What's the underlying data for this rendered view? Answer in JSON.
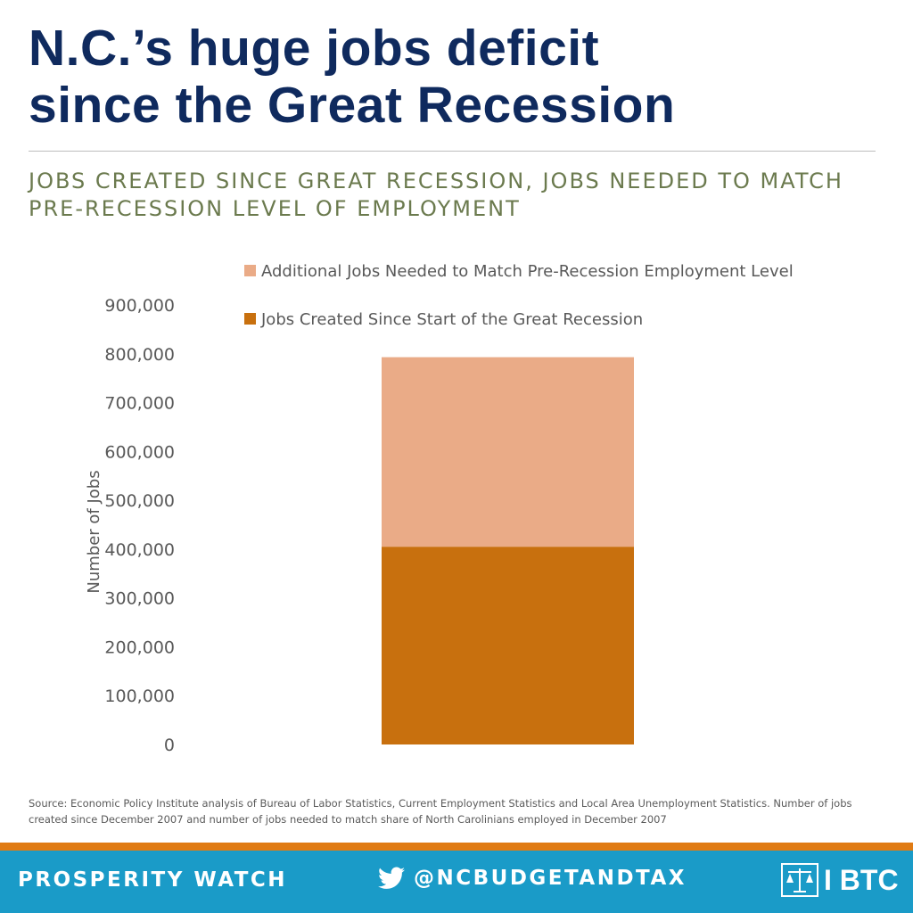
{
  "header": {
    "title_line1": "N.C.’s huge jobs deficit",
    "title_line2": "since the Great Recession",
    "subtitle_line1": "JOBS CREATED SINCE GREAT RECESSION, JOBS NEEDED TO MATCH",
    "subtitle_line2": "PRE-RECESSION LEVEL OF EMPLOYMENT"
  },
  "chart_data": {
    "type": "bar",
    "stacked": true,
    "categories": [
      ""
    ],
    "series": [
      {
        "name": "Jobs Created Since Start of the Great Recession",
        "values": [
          405000
        ],
        "color": "#c8700e"
      },
      {
        "name": "Additional Jobs Needed to Match Pre-Recession Employment Level",
        "values": [
          388000
        ],
        "color": "#eaab87"
      }
    ],
    "ylabel": "Number of Jobs",
    "ylim": [
      0,
      900000
    ],
    "yticks": [
      0,
      100000,
      200000,
      300000,
      400000,
      500000,
      600000,
      700000,
      800000,
      900000
    ],
    "ytick_labels": [
      "0",
      "100,000",
      "200,000",
      "300,000",
      "400,000",
      "500,000",
      "600,000",
      "700,000",
      "800,000",
      "900,000"
    ],
    "legend_order": [
      1,
      0
    ],
    "legend_position": "top",
    "grid": false
  },
  "source": {
    "text": "Source: Economic Policy Institute analysis of  Bureau of Labor Statistics, Current Employment Statistics and Local Area Unemployment Statistics. Number of jobs created since December  2007 and number of jobs needed to match share of North Carolinians employed in December  2007"
  },
  "footer": {
    "left_label": "PROSPERITY WATCH",
    "handle": "@NCBUDGETANDTAX",
    "logo_text": "I BTC",
    "icons": {
      "twitter": "twitter-bird-icon",
      "logo": "justice-scales-logo-icon"
    }
  },
  "colors": {
    "title": "#0f2a5e",
    "subtitle": "#6b7a4e",
    "footer_bar": "#1a9bc8",
    "footer_accent": "#e07b14"
  }
}
